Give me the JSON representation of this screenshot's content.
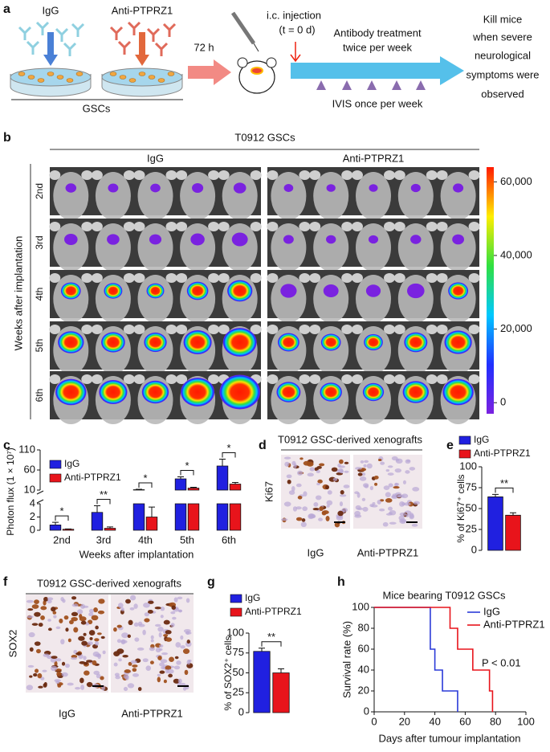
{
  "panel_labels": [
    "a",
    "b",
    "c",
    "d",
    "e",
    "f",
    "g",
    "h"
  ],
  "schematic": {
    "dish_labels": [
      "IgG",
      "Anti-PTPRZ1"
    ],
    "cells": "GSCs",
    "incubation": "72 h",
    "injection": [
      "i.c. injection",
      "(t = 0 d)"
    ],
    "treatment": [
      "Antibody treatment",
      "twice per week"
    ],
    "imaging": "IVIS once per week",
    "endpoint": [
      "Kill mice",
      "when severe",
      "neurological",
      "symptoms were",
      "observed"
    ]
  },
  "imaging": {
    "title": "T0912 GSCs",
    "groups": [
      "IgG",
      "Anti-PTPRZ1"
    ],
    "ylabel": "Weeks after implantation",
    "rows": [
      "2nd",
      "3rd",
      "4th",
      "5th",
      "6th"
    ],
    "colorbar": {
      "ylim": [
        -3000,
        64000
      ],
      "yticks": [
        0,
        {
          "value": 20000,
          "label": "20,000"
        },
        {
          "value": 40000,
          "label": "40,000"
        },
        {
          "value": 60000,
          "label": "60,000"
        }
      ]
    }
  },
  "histology": [
    {
      "title": "T0912 GSC-derived xenografts",
      "stain": "Ki67",
      "groups": [
        "IgG",
        "Anti-PTPRZ1"
      ]
    },
    {
      "title": "T0912 GSC-derived xenografts",
      "stain": "SOX2",
      "groups": [
        "IgG",
        "Anti-PTPRZ1"
      ]
    }
  ],
  "chart_data": [
    {
      "type": "bar",
      "ylabel": "Photon flux (1 × 10⁷)",
      "xlabel": "Weeks after implantation",
      "categories": [
        "2nd",
        "3rd",
        "4th",
        "5th",
        "6th"
      ],
      "series": [
        {
          "name": "IgG",
          "color": "#2020e0",
          "values": [
            0.8,
            2.7,
            11,
            38,
            70
          ],
          "errors": [
            0.4,
            1,
            1,
            5,
            17
          ]
        },
        {
          "name": "Anti-PTPRZ1",
          "color": "#e8141b",
          "values": [
            0.15,
            0.3,
            2,
            15,
            25
          ],
          "errors": [
            0.05,
            0.2,
            1.5,
            2,
            4
          ]
        }
      ],
      "ylim": [
        0,
        110
      ],
      "axis_break": [
        4,
        10
      ],
      "yticks": [
        0,
        2,
        4,
        10,
        60,
        110
      ],
      "significance": [
        "*",
        "**",
        "*",
        "*",
        "*"
      ]
    },
    {
      "type": "bar",
      "ylabel": "% of Ki67⁺ cells",
      "series": [
        {
          "name": "IgG",
          "color": "#2020e0",
          "values": [
            64
          ],
          "errors": [
            3
          ]
        },
        {
          "name": "Anti-PTPRZ1",
          "color": "#e8141b",
          "values": [
            42
          ],
          "errors": [
            3
          ]
        }
      ],
      "ylim": [
        0,
        100
      ],
      "yticks": [
        0,
        25,
        50,
        75,
        100
      ],
      "significance": [
        "**"
      ]
    },
    {
      "type": "bar",
      "ylabel": "% of SOX2⁺ cells",
      "series": [
        {
          "name": "IgG",
          "color": "#2020e0",
          "values": [
            77
          ],
          "errors": [
            4
          ]
        },
        {
          "name": "Anti-PTPRZ1",
          "color": "#e8141b",
          "values": [
            50
          ],
          "errors": [
            5
          ]
        }
      ],
      "ylim": [
        0,
        100
      ],
      "yticks": [
        0,
        25,
        50,
        75,
        100
      ],
      "significance": [
        "**"
      ]
    },
    {
      "type": "line",
      "title": "Mice bearing T0912 GSCs",
      "xlabel": "Days after tumour implantation",
      "ylabel": "Survival rate (%)",
      "series": [
        {
          "name": "IgG",
          "color": "#2a3ad8",
          "x": [
            0,
            37,
            37,
            40,
            40,
            45,
            45,
            55,
            55
          ],
          "values": [
            100,
            100,
            60,
            60,
            40,
            40,
            20,
            20,
            0
          ]
        },
        {
          "name": "Anti-PTPRZ1",
          "color": "#e8141b",
          "x": [
            0,
            50,
            50,
            55,
            55,
            65,
            65,
            76,
            76,
            78,
            78
          ],
          "values": [
            100,
            100,
            80,
            80,
            60,
            60,
            40,
            40,
            20,
            20,
            0
          ]
        }
      ],
      "xlim": [
        0,
        100
      ],
      "ylim": [
        0,
        100
      ],
      "xticks": [
        0,
        20,
        40,
        60,
        80,
        100
      ],
      "yticks": [
        0,
        20,
        40,
        60,
        80,
        100
      ],
      "annotation": "P < 0.01"
    }
  ]
}
